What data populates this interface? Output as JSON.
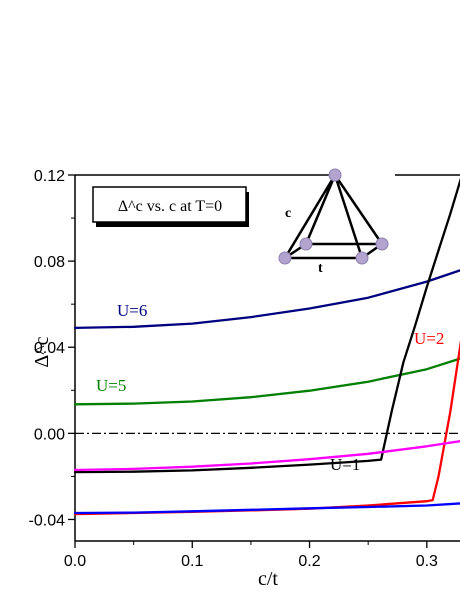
{
  "chart_data": {
    "type": "line",
    "title": "Δ^c vs. c at T=0",
    "xlabel": "c/t",
    "ylabel": "Δ^c",
    "xlim": [
      0.0,
      0.33
    ],
    "ylim": [
      -0.05,
      0.12
    ],
    "xticks": [
      "0.0",
      "0.1",
      "0.2",
      "0.3"
    ],
    "xtick_values": [
      0.0,
      0.1,
      0.2,
      0.3
    ],
    "yticks": [
      "-0.04",
      "0.00",
      "0.04",
      "0.08",
      "0.12"
    ],
    "ytick_values": [
      -0.04,
      0.0,
      0.04,
      0.08,
      0.12
    ],
    "reference_line": {
      "y": 0.0,
      "style": "dash-dot",
      "color": "#000000"
    },
    "inset": {
      "edge_labels": [
        "c",
        "t"
      ]
    },
    "series": [
      {
        "name": "U=6",
        "color": "#000080",
        "x": [
          0.0,
          0.05,
          0.1,
          0.15,
          0.2,
          0.25,
          0.3,
          0.33
        ],
        "y": [
          0.049,
          0.0495,
          0.051,
          0.054,
          0.058,
          0.063,
          0.0705,
          0.076
        ]
      },
      {
        "name": "U=5",
        "color": "#008000",
        "x": [
          0.0,
          0.05,
          0.1,
          0.15,
          0.2,
          0.25,
          0.3,
          0.33
        ],
        "y": [
          0.0135,
          0.0138,
          0.0148,
          0.0168,
          0.0198,
          0.024,
          0.0298,
          0.035
        ]
      },
      {
        "name": "U=1",
        "color": "#000000",
        "x": [
          0.0,
          0.05,
          0.1,
          0.15,
          0.2,
          0.25,
          0.261,
          0.27,
          0.28,
          0.29,
          0.3,
          0.31,
          0.32,
          0.33
        ],
        "y": [
          -0.018,
          -0.0178,
          -0.0172,
          -0.016,
          -0.0145,
          -0.0128,
          -0.0122,
          0.01,
          0.033,
          0.05,
          0.068,
          0.085,
          0.102,
          0.12
        ]
      },
      {
        "name": "U=2",
        "color": "#ff0000",
        "x": [
          0.0,
          0.05,
          0.1,
          0.15,
          0.2,
          0.25,
          0.3,
          0.305,
          0.31,
          0.32,
          0.33
        ],
        "y": [
          -0.0375,
          -0.037,
          -0.0365,
          -0.0358,
          -0.035,
          -0.0335,
          -0.0315,
          -0.031,
          -0.02,
          0.01,
          0.046
        ]
      },
      {
        "name": "",
        "color": "#ff00ff",
        "x": [
          0.0,
          0.05,
          0.1,
          0.15,
          0.2,
          0.25,
          0.3,
          0.33
        ],
        "y": [
          -0.017,
          -0.0165,
          -0.0155,
          -0.014,
          -0.012,
          -0.0095,
          -0.006,
          -0.0035
        ]
      },
      {
        "name": "",
        "color": "#0000ff",
        "x": [
          0.0,
          0.05,
          0.1,
          0.15,
          0.2,
          0.25,
          0.3,
          0.33
        ],
        "y": [
          -0.037,
          -0.0368,
          -0.0362,
          -0.0355,
          -0.0348,
          -0.0342,
          -0.0335,
          -0.0325
        ]
      }
    ]
  }
}
